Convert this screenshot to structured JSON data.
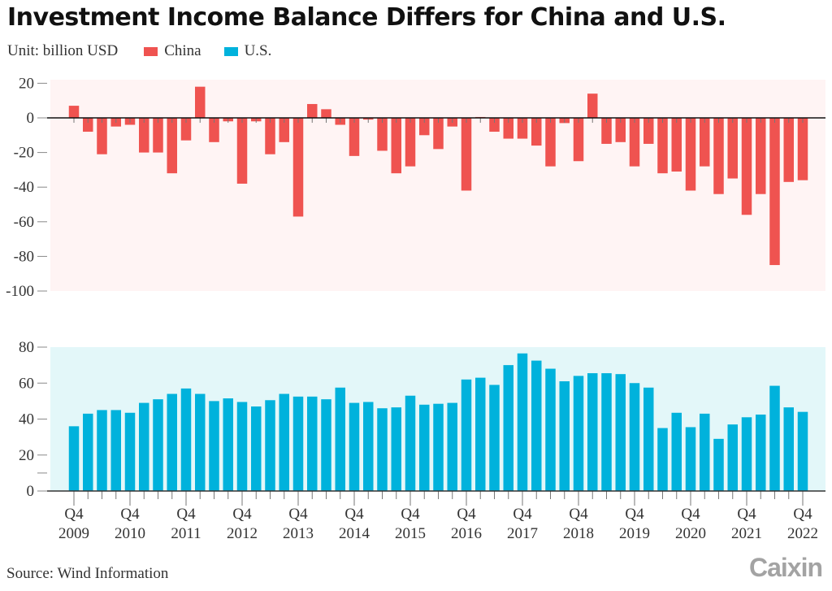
{
  "header": {
    "title": "Investment Income Balance Differs for China and U.S.",
    "unit_label": "Unit: billion USD"
  },
  "legend": [
    {
      "name": "China",
      "color": "#ef5350"
    },
    {
      "name": "U.S.",
      "color": "#00b2dc"
    }
  ],
  "footer": {
    "source": "Source: Wind Information",
    "logo": "Caixin"
  },
  "colors": {
    "china_bar": "#ef5350",
    "us_bar": "#00b2dc",
    "china_panel_bg": "#fff4f4",
    "us_panel_bg": "#e3f7f9"
  },
  "chart_data": [
    {
      "type": "bar",
      "title": "Investment Income Balance Differs for China and U.S.",
      "series_name": "China",
      "ylabel": "billion USD",
      "ylim": [
        -100,
        20
      ],
      "yticks": [
        20,
        0,
        -20,
        -40,
        -60,
        -80,
        -100
      ],
      "grid": false,
      "x_start": "Q4 2009",
      "x_end": "Q4 2022",
      "frequency": "quarterly",
      "values": [
        7,
        -8,
        -21,
        -5,
        -4,
        -20,
        -20,
        -32,
        -13,
        18,
        -14,
        -2,
        -38,
        -2,
        -21,
        -14,
        -57,
        8,
        5,
        -4,
        -22,
        -1,
        -19,
        -32,
        -28,
        -10,
        -18,
        -5,
        -42,
        0.5,
        -8,
        -12,
        -12,
        -16,
        -28,
        -3,
        -25,
        14,
        -15,
        -14,
        -28,
        -15,
        -32,
        -31,
        -42,
        -28,
        -44,
        -35,
        -56,
        -44,
        -85,
        -37,
        -36
      ]
    },
    {
      "type": "bar",
      "series_name": "U.S.",
      "ylabel": "billion USD",
      "ylim": [
        0,
        80
      ],
      "yticks": [
        80,
        60,
        40,
        20,
        0
      ],
      "grid": false,
      "x_start": "Q4 2009",
      "x_end": "Q4 2022",
      "frequency": "quarterly",
      "xtick_labels": [
        {
          "q": "Q4",
          "year": "2009"
        },
        {
          "q": "Q4",
          "year": "2010"
        },
        {
          "q": "Q4",
          "year": "2011"
        },
        {
          "q": "Q4",
          "year": "2012"
        },
        {
          "q": "Q4",
          "year": "2013"
        },
        {
          "q": "Q4",
          "year": "2014"
        },
        {
          "q": "Q4",
          "year": "2015"
        },
        {
          "q": "Q4",
          "year": "2016"
        },
        {
          "q": "Q4",
          "year": "2017"
        },
        {
          "q": "Q4",
          "year": "2018"
        },
        {
          "q": "Q4",
          "year": "2019"
        },
        {
          "q": "Q4",
          "year": "2020"
        },
        {
          "q": "Q4",
          "year": "2021"
        },
        {
          "q": "Q4",
          "year": "2022"
        }
      ],
      "values": [
        36,
        43,
        45,
        45,
        43.5,
        49,
        51,
        54,
        57,
        54,
        50,
        51.5,
        49.5,
        47,
        50.5,
        54,
        52.5,
        52.5,
        51,
        57.5,
        49,
        49.5,
        46,
        46.5,
        53,
        48,
        48.5,
        49,
        62,
        63,
        59,
        70,
        76.5,
        72.5,
        68,
        61,
        64,
        65.5,
        65.5,
        65,
        60,
        57.5,
        35,
        43.5,
        35.5,
        43,
        29,
        37,
        41,
        42.5,
        58.5,
        46.5,
        44
      ]
    }
  ]
}
